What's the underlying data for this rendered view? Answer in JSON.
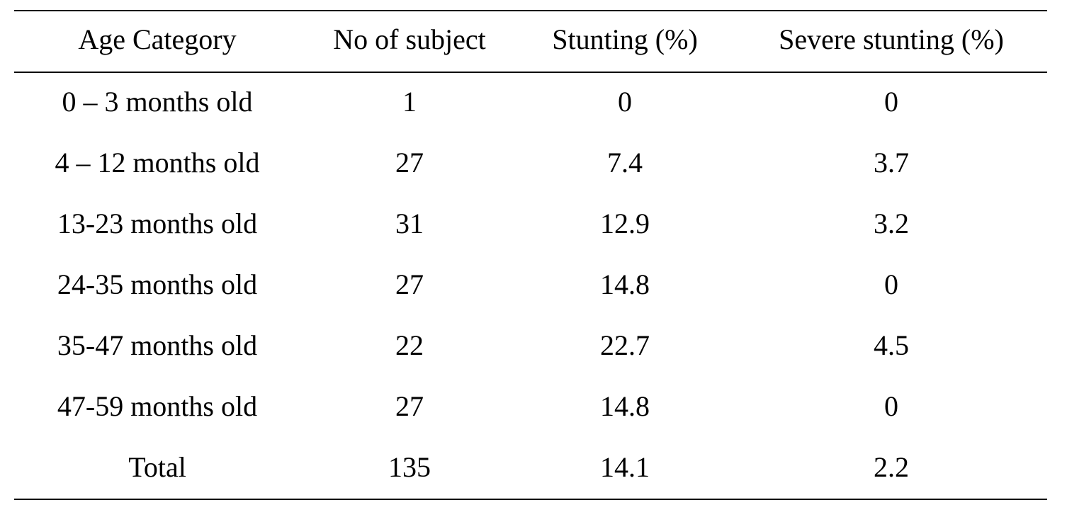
{
  "table": {
    "header": [
      "Age Category",
      "No of subject",
      "Stunting (%)",
      "Severe stunting (%)"
    ],
    "rows": [
      [
        "0 – 3 months old",
        "1",
        "0",
        "0"
      ],
      [
        "4 – 12 months old",
        "27",
        "7.4",
        "3.7"
      ],
      [
        "13-23 months old",
        "31",
        "12.9",
        "3.2"
      ],
      [
        "24-35 months old",
        "27",
        "14.8",
        "0"
      ],
      [
        "35-47 months old",
        "22",
        "22.7",
        "4.5"
      ],
      [
        "47-59 months old",
        "27",
        "14.8",
        "0"
      ],
      [
        "Total",
        "135",
        "14.1",
        "2.2"
      ]
    ]
  }
}
